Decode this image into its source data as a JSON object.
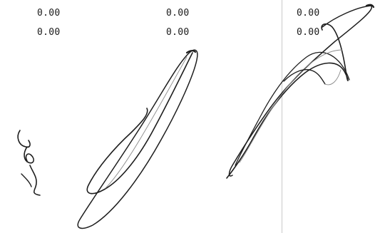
{
  "panels": {
    "left": {
      "row1": "0.00",
      "row2": "0.00"
    },
    "middle": {
      "row1": "0.00",
      "row2": "0.00"
    },
    "right": {
      "row1": "0.00",
      "row2": "0.00"
    }
  },
  "colors": {
    "ink": "#1e1e1e",
    "ink_light": "#8a8a8a",
    "divider": "#c9c9c9",
    "background": "#ffffff"
  }
}
